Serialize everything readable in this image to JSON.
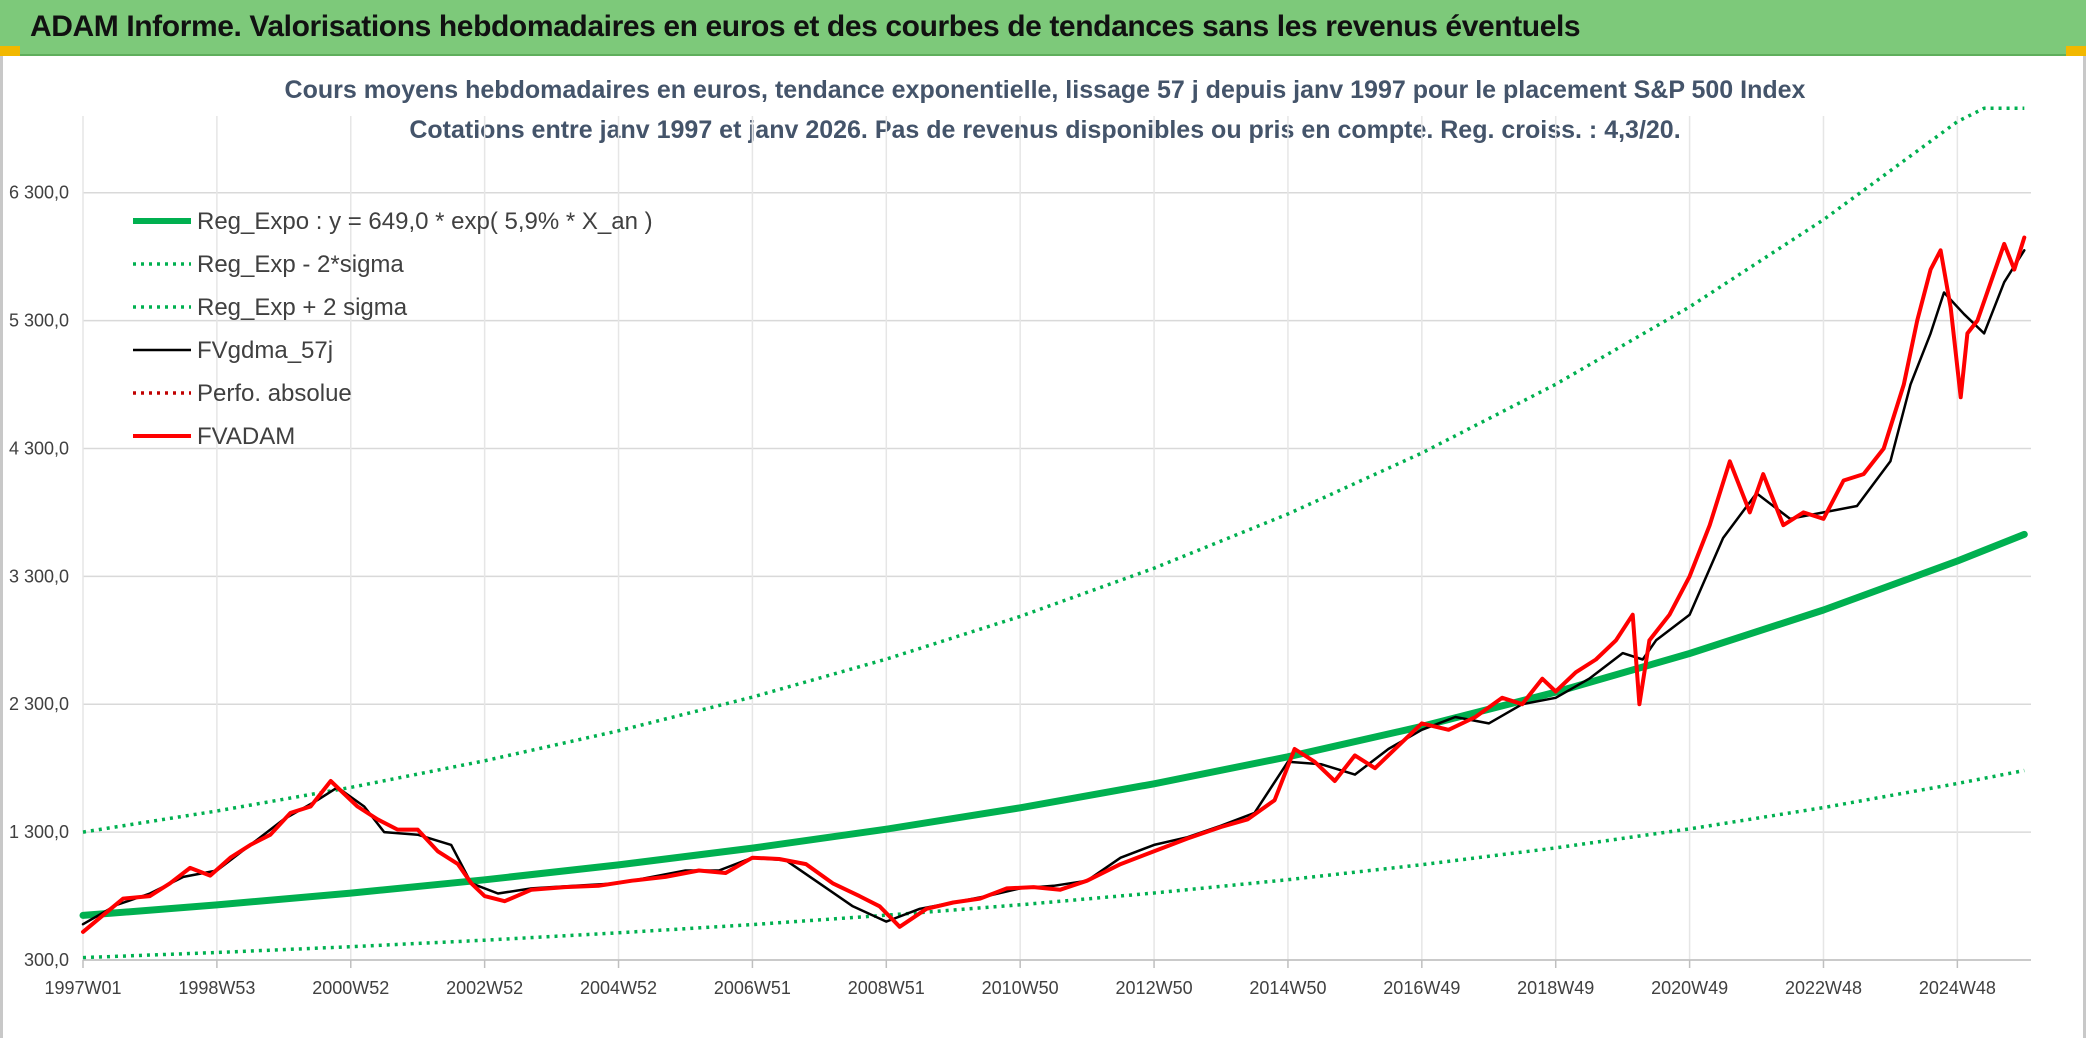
{
  "header": {
    "title": "ADAM Informe. Valorisations hebdomadaires en euros et des courbes de tendances sans les revenus éventuels"
  },
  "colors": {
    "header_bg": "#7dc97a",
    "accent": "#f2b800",
    "trend_green": "#00b050",
    "smoothed_black": "#000000",
    "fund_red": "#ff0000",
    "subtitle_text": "#44546a"
  },
  "chart_data": {
    "type": "line",
    "title": "Cours moyens hebdomadaires en euros, tendance exponentielle, lissage 57 j depuis janv 1997 pour le placement S&P 500 Index",
    "subtitle": "Cotations entre janv 1997 et janv 2026. Pas de revenus disponibles ou pris en compte. Reg. croiss. : 4,3/20.",
    "xlabel": "",
    "ylabel": "",
    "xlim": [
      1997.0,
      2026.1
    ],
    "ylim": [
      300,
      6900
    ],
    "grid": true,
    "legend_position": "top-left",
    "x_ticks": [
      {
        "x": 1997.0,
        "label": "1997W01"
      },
      {
        "x": 1999.0,
        "label": "1998W53"
      },
      {
        "x": 2001.0,
        "label": "2000W52"
      },
      {
        "x": 2003.0,
        "label": "2002W52"
      },
      {
        "x": 2005.0,
        "label": "2004W52"
      },
      {
        "x": 2007.0,
        "label": "2006W51"
      },
      {
        "x": 2009.0,
        "label": "2008W51"
      },
      {
        "x": 2011.0,
        "label": "2010W50"
      },
      {
        "x": 2013.0,
        "label": "2012W50"
      },
      {
        "x": 2015.0,
        "label": "2014W50"
      },
      {
        "x": 2017.0,
        "label": "2016W49"
      },
      {
        "x": 2019.0,
        "label": "2018W49"
      },
      {
        "x": 2021.0,
        "label": "2020W49"
      },
      {
        "x": 2023.0,
        "label": "2022W48"
      },
      {
        "x": 2025.0,
        "label": "2024W48"
      }
    ],
    "y_ticks": [
      {
        "y": 300,
        "label": "300,0"
      },
      {
        "y": 1300,
        "label": "1 300,0"
      },
      {
        "y": 2300,
        "label": "2 300,0"
      },
      {
        "y": 3300,
        "label": "3 300,0"
      },
      {
        "y": 4300,
        "label": "4 300,0"
      },
      {
        "y": 5300,
        "label": "5 300,0"
      },
      {
        "y": 6300,
        "label": "6 300,0"
      }
    ],
    "series": [
      {
        "name": "Reg_Expo : y = 649,0 * exp( 5,9% *  X_an )",
        "style": "solid-thick",
        "color": "#00b050",
        "x": [
          1997.0,
          1999.0,
          2001.0,
          2003.0,
          2005.0,
          2007.0,
          2009.0,
          2011.0,
          2013.0,
          2015.0,
          2017.0,
          2019.0,
          2021.0,
          2023.0,
          2025.0,
          2026.0
        ],
        "y": [
          649,
          731,
          823,
          927,
          1044,
          1175,
          1323,
          1490,
          1678,
          1889,
          2127,
          2395,
          2697,
          3037,
          3420,
          3628
        ]
      },
      {
        "name": "Reg_Exp - 2*sigma",
        "style": "dotted",
        "color": "#00b050",
        "x": [
          1997.0,
          1999.0,
          2001.0,
          2003.0,
          2005.0,
          2007.0,
          2009.0,
          2011.0,
          2013.0,
          2015.0,
          2017.0,
          2019.0,
          2021.0,
          2023.0,
          2025.0,
          2026.0
        ],
        "y": [
          319,
          359,
          404,
          455,
          513,
          577,
          650,
          732,
          824,
          928,
          1045,
          1177,
          1325,
          1492,
          1680,
          1782
        ]
      },
      {
        "name": "Reg_Exp + 2 sigma",
        "style": "dotted",
        "color": "#00b050",
        "x": [
          1997.0,
          1999.0,
          2001.0,
          2003.0,
          2005.0,
          2007.0,
          2009.0,
          2011.0,
          2013.0,
          2015.0,
          2017.0,
          2019.0,
          2021.0,
          2023.0,
          2025.0,
          2025.4,
          2026.0
        ],
        "y": [
          1300,
          1465,
          1650,
          1858,
          2092,
          2356,
          2653,
          2987,
          3364,
          3788,
          4265,
          4802,
          5407,
          6089,
          6856,
          6960,
          6960
        ]
      },
      {
        "name": "FVgdma_57j",
        "style": "solid",
        "color": "#000000",
        "x": [
          1997.0,
          1997.5,
          1998.0,
          1998.5,
          1999.0,
          1999.5,
          2000.0,
          2000.5,
          2000.8,
          2001.2,
          2001.5,
          2002.0,
          2002.5,
          2002.8,
          2003.2,
          2003.7,
          2004.0,
          2005.0,
          2006.0,
          2006.5,
          2007.0,
          2007.5,
          2008.0,
          2008.5,
          2009.0,
          2009.5,
          2010.0,
          2010.5,
          2011.0,
          2011.5,
          2012.0,
          2012.5,
          2013.0,
          2013.5,
          2014.0,
          2014.5,
          2015.0,
          2015.5,
          2016.0,
          2016.5,
          2017.0,
          2017.5,
          2018.0,
          2018.5,
          2019.0,
          2019.5,
          2020.0,
          2020.3,
          2020.5,
          2021.0,
          2021.5,
          2022.0,
          2022.5,
          2023.0,
          2023.5,
          2024.0,
          2024.3,
          2024.6,
          2024.8,
          2025.1,
          2025.4,
          2025.7,
          2026.0
        ],
        "y": [
          580,
          730,
          820,
          950,
          1000,
          1200,
          1400,
          1550,
          1650,
          1500,
          1300,
          1280,
          1200,
          900,
          820,
          860,
          870,
          900,
          1000,
          1000,
          1100,
          1080,
          900,
          720,
          600,
          700,
          750,
          800,
          860,
          880,
          920,
          1100,
          1200,
          1260,
          1350,
          1450,
          1850,
          1830,
          1750,
          1950,
          2100,
          2200,
          2150,
          2300,
          2350,
          2500,
          2700,
          2650,
          2800,
          3000,
          3600,
          3950,
          3750,
          3800,
          3850,
          4200,
          4800,
          5200,
          5520,
          5350,
          5200,
          5600,
          5850
        ]
      },
      {
        "name": "Perfo. absolue",
        "style": "dotted",
        "color": "#c00000",
        "x": [],
        "y": []
      },
      {
        "name": "FVADAM",
        "style": "solid-thick",
        "color": "#ff0000",
        "x": [
          1997.0,
          1997.3,
          1997.6,
          1998.0,
          1998.3,
          1998.6,
          1998.9,
          1999.2,
          1999.5,
          1999.8,
          2000.1,
          2000.4,
          2000.7,
          2000.9,
          2001.1,
          2001.4,
          2001.7,
          2002.0,
          2002.3,
          2002.6,
          2002.8,
          2003.0,
          2003.3,
          2003.7,
          2004.2,
          2004.7,
          2005.2,
          2005.7,
          2006.2,
          2006.6,
          2007.0,
          2007.4,
          2007.8,
          2008.2,
          2008.6,
          2008.9,
          2009.2,
          2009.6,
          2010.0,
          2010.4,
          2010.8,
          2011.2,
          2011.6,
          2012.0,
          2012.5,
          2013.0,
          2013.5,
          2014.0,
          2014.4,
          2014.8,
          2015.1,
          2015.4,
          2015.7,
          2016.0,
          2016.3,
          2016.7,
          2017.0,
          2017.4,
          2017.8,
          2018.2,
          2018.5,
          2018.8,
          2019.0,
          2019.3,
          2019.6,
          2019.9,
          2020.15,
          2020.25,
          2020.4,
          2020.7,
          2021.0,
          2021.3,
          2021.6,
          2021.9,
          2022.1,
          2022.4,
          2022.7,
          2023.0,
          2023.3,
          2023.6,
          2023.9,
          2024.2,
          2024.4,
          2024.6,
          2024.75,
          2024.9,
          2025.05,
          2025.15,
          2025.3,
          2025.5,
          2025.7,
          2025.85,
          2026.0
        ],
        "y": [
          520,
          650,
          780,
          800,
          900,
          1020,
          960,
          1100,
          1200,
          1280,
          1450,
          1500,
          1700,
          1600,
          1500,
          1400,
          1320,
          1320,
          1150,
          1050,
          900,
          800,
          760,
          850,
          870,
          880,
          920,
          950,
          1000,
          980,
          1100,
          1090,
          1050,
          900,
          800,
          720,
          560,
          700,
          750,
          780,
          860,
          870,
          850,
          920,
          1050,
          1150,
          1250,
          1340,
          1400,
          1550,
          1950,
          1850,
          1700,
          1900,
          1800,
          2000,
          2150,
          2100,
          2200,
          2350,
          2300,
          2500,
          2400,
          2550,
          2650,
          2800,
          3000,
          2300,
          2800,
          3000,
          3300,
          3700,
          4200,
          3800,
          4100,
          3700,
          3800,
          3750,
          4050,
          4100,
          4300,
          4800,
          5300,
          5700,
          5850,
          5400,
          4700,
          5200,
          5300,
          5600,
          5900,
          5700,
          5950
        ]
      }
    ]
  }
}
